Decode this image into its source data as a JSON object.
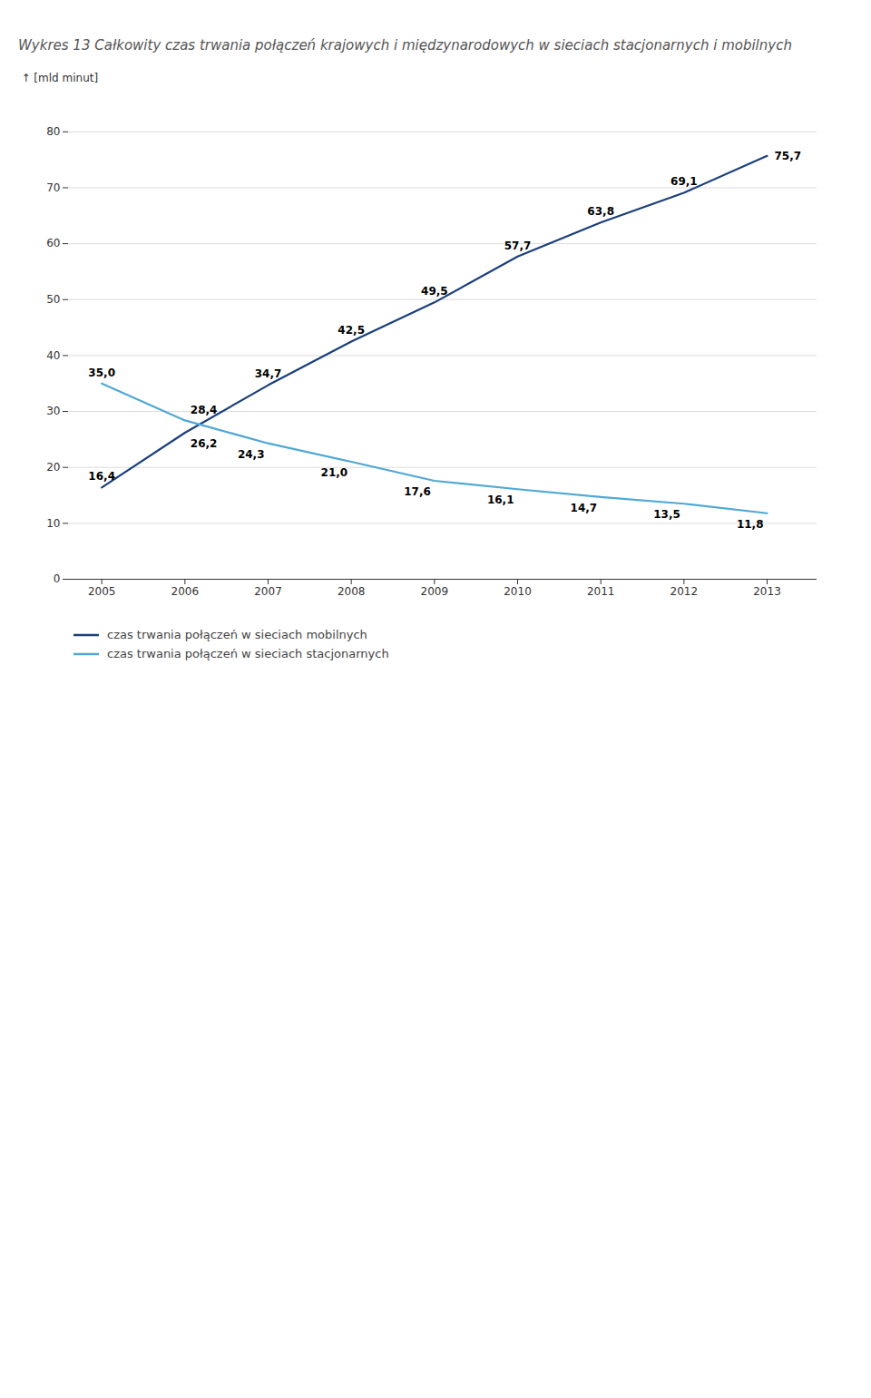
{
  "chart_data": {
    "type": "line",
    "title": "Wykres 13 Całkowity czas trwania połączeń krajowych i międzynarodowych w sieciach stacjonarnych i mobilnych",
    "x": [
      2005,
      2006,
      2007,
      2008,
      2009,
      2010,
      2011,
      2012,
      2013
    ],
    "xlim": [
      2004.6,
      2013.6
    ],
    "xticks": [
      2005,
      2006,
      2007,
      2008,
      2009,
      2010,
      2011,
      2012,
      2013
    ],
    "ylabel": "[mld minut]",
    "ylim": [
      0,
      85
    ],
    "yticks": [
      0,
      10,
      20,
      30,
      40,
      50,
      60,
      70,
      80
    ],
    "grid": "y",
    "legend": "bottom",
    "data_labels": true,
    "series": [
      {
        "name": "czas trwania połączeń w sieciach mobilnych",
        "color": "#1A3F7A",
        "values": [
          16.4,
          26.2,
          34.7,
          42.5,
          49.5,
          57.7,
          63.8,
          69.1,
          75.7
        ],
        "value_labels": [
          "16,4",
          "26,2",
          "34,7",
          "42,5",
          "49,5",
          "57,7",
          "63,8",
          "69,1",
          "75,7"
        ]
      },
      {
        "name": "czas trwania połączeń w sieciach stacjonarnych",
        "color": "#4FA8D4",
        "values": [
          35.0,
          28.4,
          24.3,
          21.0,
          17.6,
          16.1,
          14.7,
          13.5,
          11.8
        ],
        "value_labels": [
          "35,0",
          "28,4",
          "24,3",
          "21,0",
          "17,6",
          "16,1",
          "14,7",
          "13,5",
          "11,8"
        ]
      }
    ]
  }
}
